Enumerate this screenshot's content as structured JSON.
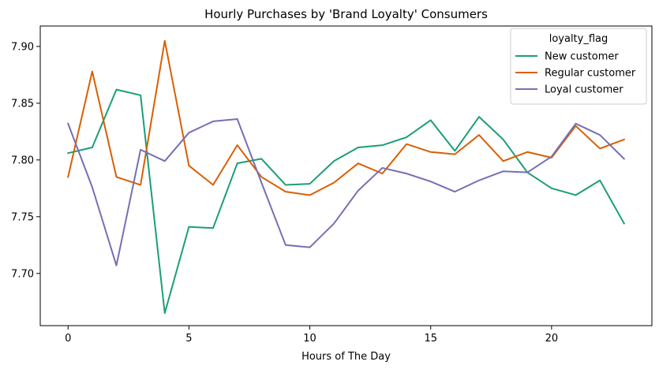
{
  "chart_data": {
    "type": "line",
    "title": "Hourly Purchases by 'Brand Loyalty' Consumers",
    "xlabel": "Hours of The Day",
    "ylabel": "",
    "x": [
      0,
      1,
      2,
      3,
      4,
      5,
      6,
      7,
      8,
      9,
      10,
      11,
      12,
      13,
      14,
      15,
      16,
      17,
      18,
      19,
      20,
      21,
      22,
      23
    ],
    "xlim": [
      -1.15,
      24.15
    ],
    "ylim": [
      7.654,
      7.918
    ],
    "xticks": [
      0,
      5,
      10,
      15,
      20
    ],
    "yticks": [
      7.7,
      7.75,
      7.8,
      7.85,
      7.9
    ],
    "ytick_labels": [
      "7.70",
      "7.75",
      "7.80",
      "7.85",
      "7.90"
    ],
    "grid": false,
    "legend": {
      "title": "loyalty_flag",
      "placement": "top-right"
    },
    "series": [
      {
        "name": "New customer",
        "color": "#1b9e77",
        "values": [
          7.806,
          7.811,
          7.862,
          7.857,
          7.665,
          7.741,
          7.74,
          7.797,
          7.801,
          7.778,
          7.779,
          7.799,
          7.811,
          7.813,
          7.82,
          7.835,
          7.808,
          7.838,
          7.818,
          7.789,
          7.775,
          7.769,
          7.782,
          7.744
        ]
      },
      {
        "name": "Regular customer",
        "color": "#d95f02",
        "values": [
          7.785,
          7.878,
          7.785,
          7.778,
          7.905,
          7.795,
          7.778,
          7.813,
          7.785,
          7.772,
          7.769,
          7.78,
          7.797,
          7.788,
          7.814,
          7.807,
          7.805,
          7.822,
          7.799,
          7.807,
          7.802,
          7.83,
          7.81,
          7.818
        ]
      },
      {
        "name": "Loyal customer",
        "color": "#7570b3",
        "values": [
          7.832,
          7.776,
          7.707,
          7.809,
          7.799,
          7.824,
          7.834,
          7.836,
          7.78,
          7.725,
          7.723,
          7.744,
          7.773,
          7.793,
          7.788,
          7.781,
          7.772,
          7.782,
          7.79,
          7.789,
          7.803,
          7.832,
          7.822,
          7.801
        ]
      }
    ]
  }
}
